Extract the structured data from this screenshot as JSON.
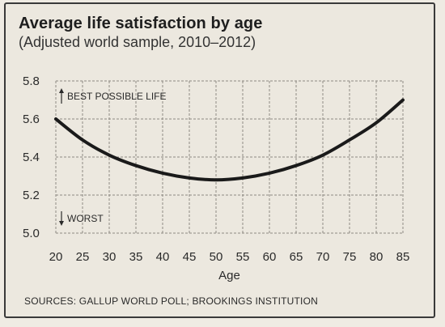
{
  "chart_data": {
    "type": "line",
    "title": "Average life satisfaction by age",
    "subtitle": "(Adjusted world sample, 2010–2012)",
    "xlabel": "Age",
    "ylabel": "",
    "x": [
      20,
      25,
      30,
      35,
      40,
      45,
      50,
      55,
      60,
      65,
      70,
      75,
      80,
      85
    ],
    "y": [
      5.6,
      5.49,
      5.41,
      5.355,
      5.315,
      5.29,
      5.28,
      5.29,
      5.315,
      5.355,
      5.41,
      5.49,
      5.58,
      5.7
    ],
    "xlim": [
      20,
      85
    ],
    "ylim": [
      5.0,
      5.8
    ],
    "xticks": [
      "20",
      "25",
      "30",
      "35",
      "40",
      "45",
      "50",
      "55",
      "60",
      "65",
      "70",
      "75",
      "80",
      "85"
    ],
    "yticks": [
      "5.0",
      "5.2",
      "5.4",
      "5.6",
      "5.8"
    ],
    "grid": true,
    "line_color": "#1a1a1a",
    "annotations": {
      "top": "BEST POSSIBLE LIFE",
      "bottom": "WORST"
    },
    "source": "SOURCES: GALLUP WORLD POLL; BROOKINGS INSTITUTION"
  }
}
